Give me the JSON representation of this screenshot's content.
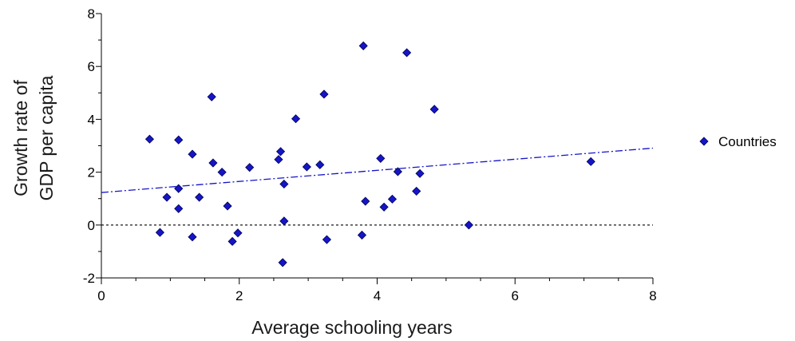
{
  "chart_data": {
    "type": "scatter",
    "title": "",
    "xlabel": "Average schooling years",
    "ylabel_lines": [
      "Growth rate of",
      "GDP per capita"
    ],
    "xlim": [
      0,
      8
    ],
    "ylim": [
      -2,
      8
    ],
    "x_ticks": [
      "0",
      "2",
      "4",
      "6",
      "8"
    ],
    "y_ticks": [
      "-2",
      "0",
      "2",
      "4",
      "6",
      "8"
    ],
    "grid": false,
    "legend_position": "right",
    "series": [
      {
        "name": "Countries",
        "color": "#1515c8",
        "marker": "diamond",
        "points": [
          [
            0.7,
            3.25
          ],
          [
            0.85,
            -0.28
          ],
          [
            0.95,
            1.05
          ],
          [
            1.12,
            3.22
          ],
          [
            1.12,
            1.38
          ],
          [
            1.12,
            0.62
          ],
          [
            1.32,
            2.68
          ],
          [
            1.32,
            -0.45
          ],
          [
            1.42,
            1.05
          ],
          [
            1.6,
            4.85
          ],
          [
            1.62,
            2.35
          ],
          [
            1.75,
            2.0
          ],
          [
            1.83,
            0.72
          ],
          [
            1.9,
            -0.62
          ],
          [
            1.98,
            -0.3
          ],
          [
            2.15,
            2.18
          ],
          [
            2.57,
            2.48
          ],
          [
            2.6,
            2.78
          ],
          [
            2.65,
            1.55
          ],
          [
            2.65,
            0.15
          ],
          [
            2.63,
            -1.42
          ],
          [
            2.82,
            4.02
          ],
          [
            2.98,
            2.2
          ],
          [
            3.17,
            2.28
          ],
          [
            3.23,
            4.95
          ],
          [
            3.27,
            -0.55
          ],
          [
            3.78,
            -0.38
          ],
          [
            3.8,
            6.78
          ],
          [
            3.83,
            0.9
          ],
          [
            4.05,
            2.52
          ],
          [
            4.1,
            0.68
          ],
          [
            4.22,
            0.98
          ],
          [
            4.3,
            2.02
          ],
          [
            4.43,
            6.52
          ],
          [
            4.57,
            1.28
          ],
          [
            4.62,
            1.95
          ],
          [
            4.83,
            4.38
          ],
          [
            5.33,
            0.0
          ],
          [
            7.1,
            2.4
          ]
        ]
      }
    ],
    "trend_line": {
      "x": [
        0,
        8
      ],
      "y": [
        1.23,
        2.91
      ],
      "color": "#1515c8",
      "style": "dash-dot"
    },
    "reference_line": {
      "y": 0,
      "color": "#000000",
      "style": "dotted"
    }
  }
}
